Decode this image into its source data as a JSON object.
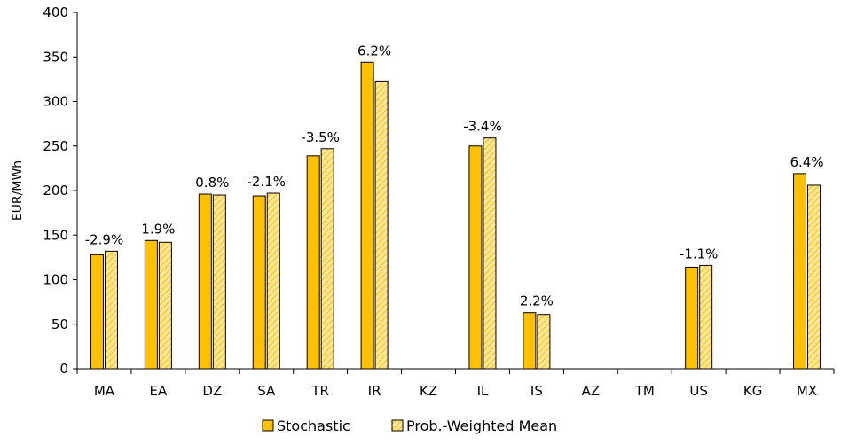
{
  "chart_data": {
    "type": "bar",
    "title": "",
    "xlabel": "",
    "ylabel": "EUR/MWh",
    "ylim": [
      0,
      400
    ],
    "yticks": [
      0,
      50,
      100,
      150,
      200,
      250,
      300,
      350,
      400
    ],
    "grid": false,
    "legend_position": "bottom",
    "categories": [
      "MA",
      "EA",
      "DZ",
      "SA",
      "TR",
      "IR",
      "KZ",
      "IL",
      "IS",
      "AZ",
      "TM",
      "US",
      "KG",
      "MX"
    ],
    "series": [
      {
        "name": "Stochastic",
        "values": [
          128,
          144,
          196,
          194,
          239,
          344,
          null,
          250,
          63,
          null,
          null,
          114,
          null,
          219
        ],
        "color": "#FFC000"
      },
      {
        "name": "Prob.-Weighted Mean",
        "values": [
          132,
          142,
          195,
          197,
          247,
          323,
          null,
          259,
          61,
          null,
          null,
          116,
          null,
          206
        ],
        "color": "#FFE699",
        "pattern": "diagonal-hatch"
      }
    ],
    "data_labels": [
      "-2.9%",
      "1.9%",
      "0.8%",
      "-2.1%",
      "-3.5%",
      "6.2%",
      null,
      "-3.4%",
      "2.2%",
      null,
      null,
      "-1.1%",
      null,
      "6.4%"
    ]
  },
  "colors": {
    "bar_stroke": "#000000",
    "hatch_line": "#FFC000"
  }
}
